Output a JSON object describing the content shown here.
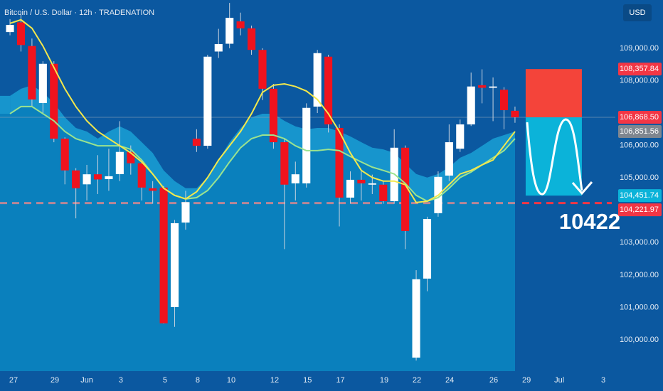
{
  "chart_data": {
    "type": "candlestick",
    "title": "Bitcoin / U.S. Dollar · 12h · TRADENATION",
    "currency": "USD",
    "annotation": "10422",
    "colors": {
      "up": "#ffffff",
      "down": "#f0131e",
      "wick": "#c9d3df"
    },
    "open": [
      109500,
      109800,
      109070,
      107310,
      108520,
      106210,
      105230,
      104800,
      105110,
      104960,
      105115,
      105800,
      105450,
      104680,
      104700,
      101010,
      103620,
      106210,
      105990,
      108900,
      109140,
      109830,
      109615,
      108950,
      107750,
      106100,
      104830,
      104830,
      107200,
      108740,
      106540,
      104390,
      104940,
      104790,
      104790,
      104280,
      105930,
      99450,
      101890,
      103910,
      105070,
      105900,
      106650,
      107860,
      107780,
      107720,
      107070
    ],
    "high": [
      109900,
      110050,
      109300,
      108600,
      108600,
      106250,
      105300,
      105400,
      105700,
      105900,
      106750,
      106000,
      105500,
      104900,
      104750,
      103700,
      104600,
      106500,
      108800,
      109600,
      110400,
      110100,
      109700,
      109000,
      107900,
      106200,
      105500,
      107300,
      108950,
      108800,
      106650,
      105200,
      105200,
      105100,
      104900,
      106500,
      106000,
      102150,
      103800,
      105200,
      106650,
      106800,
      108250,
      108350,
      108100,
      107800,
      107200
    ],
    "low": [
      109400,
      108900,
      107200,
      107000,
      106100,
      104800,
      103750,
      104300,
      104500,
      104600,
      104900,
      105100,
      104300,
      104200,
      100500,
      100400,
      103400,
      105800,
      105900,
      108700,
      109000,
      109400,
      108800,
      107400,
      105900,
      102800,
      104300,
      104700,
      107000,
      106400,
      103500,
      104200,
      104300,
      104500,
      104200,
      104200,
      102800,
      99360,
      101500,
      103800,
      104900,
      105800,
      106600,
      107300,
      106750,
      106500,
      106700
    ],
    "close": [
      109720,
      109100,
      107420,
      108520,
      106210,
      105230,
      104680,
      105110,
      104950,
      105050,
      105800,
      105450,
      104700,
      104600,
      100510,
      103600,
      104250,
      105990,
      108740,
      109130,
      109940,
      109615,
      108950,
      107750,
      106100,
      104790,
      105110,
      107160,
      108850,
      106650,
      104390,
      104940,
      104830,
      104830,
      104280,
      105930,
      103360,
      101870,
      103730,
      105030,
      106100,
      106650,
      107820,
      107780,
      107820,
      107090,
      106870
    ],
    "band": {
      "color": "#1795cd",
      "values": [
        107530,
        107750,
        107860,
        107640,
        107310,
        106870,
        106540,
        106430,
        106210,
        106430,
        106590,
        106430,
        106100,
        105770,
        105230,
        104900,
        104680,
        104680,
        105010,
        105550,
        106100,
        106540,
        106870,
        106980,
        106980,
        106760,
        106590,
        106500,
        106540,
        106540,
        106430,
        106280,
        106100,
        105930,
        105880,
        105770,
        105440,
        105120,
        105010,
        105120,
        105330,
        105620,
        105770,
        105990,
        106210,
        106320,
        106430
      ]
    },
    "lines": [
      {
        "color": "#9be38f",
        "fill": "#0a80bd",
        "values": [
          106980,
          107200,
          107200,
          106980,
          106760,
          106430,
          106210,
          106100,
          105990,
          105990,
          105990,
          105880,
          105550,
          105120,
          104680,
          104460,
          104350,
          104390,
          104610,
          105010,
          105490,
          105930,
          106210,
          106320,
          106320,
          106210,
          105990,
          105840,
          105840,
          105880,
          105840,
          105660,
          105490,
          105330,
          105230,
          105120,
          104830,
          104460,
          104280,
          104390,
          104680,
          105010,
          105180,
          105400,
          105620,
          105840,
          106210
        ]
      },
      {
        "color": "#f4e84b",
        "values": [
          109770,
          109880,
          109620,
          109070,
          108410,
          107750,
          107200,
          106760,
          106430,
          106210,
          105990,
          105770,
          105490,
          105120,
          104680,
          104460,
          104350,
          104570,
          105010,
          105550,
          105990,
          106430,
          106980,
          107640,
          107860,
          107900,
          107820,
          107680,
          107420,
          106980,
          106430,
          105770,
          105230,
          105010,
          104900,
          104900,
          104790,
          104240,
          104280,
          104460,
          104790,
          105120,
          105230,
          105400,
          105550,
          105990,
          106430
        ]
      }
    ],
    "xlim": [
      -0.91,
      55.14
    ],
    "xticks": [
      {
        "value": 0.32,
        "label": "27"
      },
      {
        "value": 4.08,
        "label": "29"
      },
      {
        "value": 7.0,
        "label": "Jun"
      },
      {
        "value": 10.1,
        "label": "3"
      },
      {
        "value": 14.12,
        "label": "5"
      },
      {
        "value": 17.1,
        "label": "8"
      },
      {
        "value": 20.15,
        "label": "10"
      },
      {
        "value": 24.1,
        "label": "12"
      },
      {
        "value": 27.1,
        "label": "15"
      },
      {
        "value": 30.1,
        "label": "17"
      },
      {
        "value": 34.08,
        "label": "19"
      },
      {
        "value": 37.06,
        "label": "22"
      },
      {
        "value": 40.05,
        "label": "24"
      },
      {
        "value": 44.06,
        "label": "26"
      },
      {
        "value": 47.05,
        "label": "29"
      },
      {
        "value": 50.03,
        "label": "Jul"
      },
      {
        "value": 54.04,
        "label": "3"
      }
    ],
    "ylim": [
      99035,
      110490
    ],
    "yticks": [
      {
        "value": 109000,
        "label": "109,000.00"
      },
      {
        "value": 108000,
        "label": "108,000.00"
      },
      {
        "value": 106000,
        "label": "106,000.00"
      },
      {
        "value": 105000,
        "label": "105,000.00"
      },
      {
        "value": 103000,
        "label": "103,000.00"
      },
      {
        "value": 102000,
        "label": "102,000.00"
      },
      {
        "value": 101000,
        "label": "101,000.00"
      },
      {
        "value": 100000,
        "label": "100,000.00"
      }
    ],
    "price_tags": [
      {
        "value": 108357.84,
        "label": "108,357.84",
        "color": "#f23645"
      },
      {
        "value": 106868.5,
        "label": "106,868.50",
        "color": "#f23645"
      },
      {
        "value": 106851.56,
        "label": "106,851.56",
        "color": "#7f868f"
      },
      {
        "value": 104451.74,
        "label": "104,451.74",
        "color": "#0bb3d9"
      },
      {
        "value": 104221.97,
        "label": "104,221.97",
        "color": "#f23645"
      }
    ]
  }
}
